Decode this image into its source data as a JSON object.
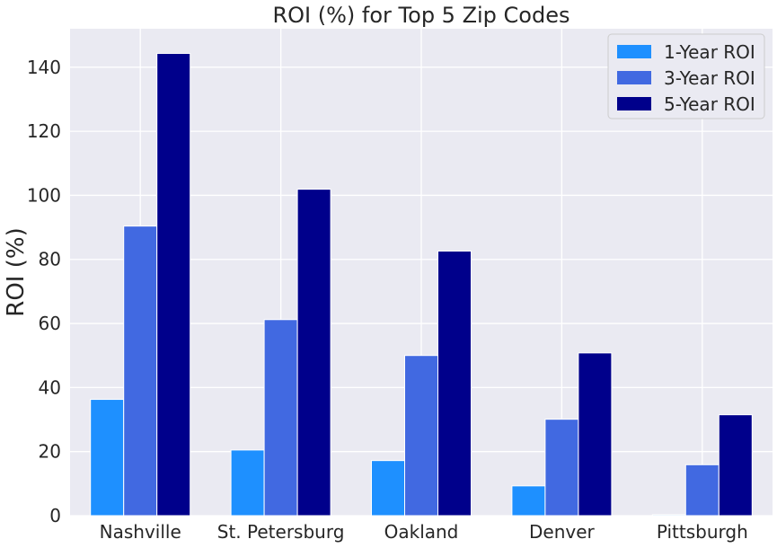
{
  "chart_data": {
    "type": "bar",
    "title": "ROI (%) for Top 5 Zip Codes",
    "xlabel": "",
    "ylabel": "ROI (%)",
    "categories": [
      "Nashville",
      "St. Petersburg",
      "Oakland",
      "Denver",
      "Pittsburgh"
    ],
    "series": [
      {
        "name": "1-Year ROI",
        "color": "#1e90ff",
        "values": [
          36.3,
          20.5,
          17.2,
          9.3,
          0.3
        ]
      },
      {
        "name": "3-Year ROI",
        "color": "#4169e1",
        "values": [
          90.4,
          61.2,
          50.0,
          30.1,
          15.9
        ]
      },
      {
        "name": "5-Year ROI",
        "color": "#00008b",
        "values": [
          144.3,
          101.9,
          82.6,
          50.8,
          31.5
        ]
      }
    ],
    "ylim": [
      0,
      152
    ],
    "yticks": [
      0,
      20,
      40,
      60,
      80,
      100,
      120,
      140
    ],
    "grid": true,
    "legend_position": "top-right",
    "background": "#eaeaf2"
  }
}
